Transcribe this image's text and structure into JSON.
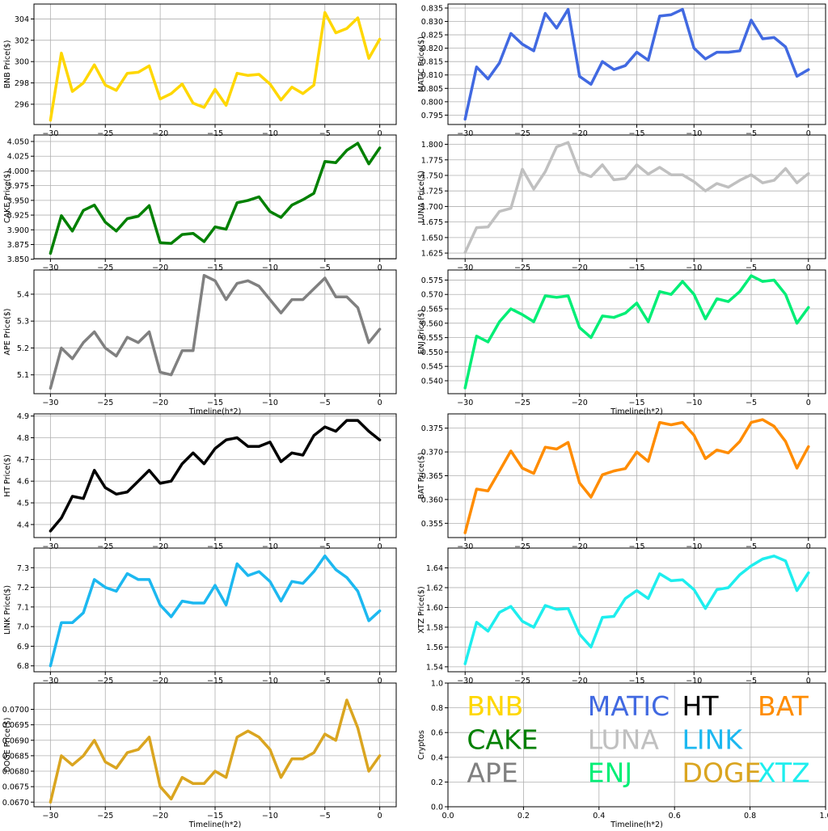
{
  "chart_data": [
    {
      "id": "bnb",
      "type": "line",
      "color": "#FFD700",
      "ylabel": "BNB Price($)",
      "xlabel": "",
      "xlim": [
        -31.5,
        1.5
      ],
      "ylim": [
        294.1,
        305.4
      ],
      "xticks": [
        -30,
        -25,
        -20,
        -15,
        -10,
        -5,
        0
      ],
      "yticks": [
        296,
        298,
        300,
        302,
        304
      ],
      "ytick_decimals": 0,
      "series": [
        {
          "values": [
            294.5,
            300.8,
            297.2,
            298.0,
            299.7,
            297.8,
            297.3,
            298.9,
            299.0,
            299.6,
            296.5,
            297.0,
            297.9,
            296.1,
            295.7,
            297.4,
            295.9,
            298.9,
            298.7,
            298.8,
            297.9,
            296.4,
            297.6,
            297.0,
            297.8,
            304.6,
            302.7,
            303.1,
            304.1,
            300.3,
            302.1
          ]
        }
      ]
    },
    {
      "id": "matic",
      "type": "line",
      "color": "#4169E1",
      "ylabel": "MATIC  Price($)",
      "xlabel": "",
      "xlim": [
        -31.5,
        1.5
      ],
      "ylim": [
        0.7915,
        0.8365
      ],
      "xticks": [
        -30,
        -25,
        -20,
        -15,
        -10,
        -5,
        0
      ],
      "yticks": [
        0.795,
        0.8,
        0.805,
        0.81,
        0.815,
        0.82,
        0.825,
        0.83,
        0.835
      ],
      "ytick_decimals": 3,
      "series": [
        {
          "values": [
            0.7935,
            0.813,
            0.8085,
            0.8145,
            0.8255,
            0.8215,
            0.819,
            0.833,
            0.8275,
            0.8345,
            0.8095,
            0.8065,
            0.815,
            0.812,
            0.8135,
            0.8185,
            0.8155,
            0.832,
            0.8325,
            0.8345,
            0.82,
            0.816,
            0.8185,
            0.8185,
            0.819,
            0.8305,
            0.8235,
            0.824,
            0.8205,
            0.8095,
            0.812
          ]
        }
      ]
    },
    {
      "id": "cake",
      "type": "line",
      "color": "#008000",
      "ylabel": "CAKE Price($)",
      "xlabel": "",
      "xlim": [
        -31.5,
        1.5
      ],
      "ylim": [
        3.851,
        4.061
      ],
      "xticks": [
        -30,
        -25,
        -20,
        -15,
        -10,
        -5,
        0
      ],
      "yticks": [
        3.85,
        3.875,
        3.9,
        3.925,
        3.95,
        3.975,
        4.0,
        4.025,
        4.05
      ],
      "ytick_decimals": 3,
      "series": [
        {
          "values": [
            3.86,
            3.924,
            3.898,
            3.933,
            3.942,
            3.913,
            3.898,
            3.919,
            3.923,
            3.941,
            3.878,
            3.877,
            3.892,
            3.894,
            3.88,
            3.905,
            3.901,
            3.946,
            3.95,
            3.956,
            3.931,
            3.921,
            3.942,
            3.951,
            3.962,
            4.016,
            4.014,
            4.035,
            4.047,
            4.012,
            4.039
          ]
        }
      ]
    },
    {
      "id": "luna",
      "type": "line",
      "color": "#C0C0C0",
      "ylabel": "LUNA  Price($)",
      "xlabel": "",
      "xlim": [
        -31.5,
        1.5
      ],
      "ylim": [
        1.616,
        1.815
      ],
      "xticks": [
        -30,
        -25,
        -20,
        -15,
        -10,
        -5,
        0
      ],
      "yticks": [
        1.625,
        1.65,
        1.675,
        1.7,
        1.725,
        1.75,
        1.775,
        1.8
      ],
      "ytick_decimals": 3,
      "series": [
        {
          "values": [
            1.626,
            1.666,
            1.667,
            1.692,
            1.697,
            1.76,
            1.728,
            1.756,
            1.796,
            1.803,
            1.755,
            1.748,
            1.767,
            1.743,
            1.745,
            1.767,
            1.752,
            1.763,
            1.751,
            1.751,
            1.74,
            1.725,
            1.737,
            1.731,
            1.742,
            1.751,
            1.738,
            1.742,
            1.761,
            1.738,
            1.753
          ]
        }
      ]
    },
    {
      "id": "ape",
      "type": "line",
      "color": "#808080",
      "ylabel": "APE Price($)",
      "xlabel": "Timeline(h*2)",
      "xlim": [
        -31.5,
        1.5
      ],
      "ylim": [
        5.03,
        5.49
      ],
      "xticks": [
        -30,
        -25,
        -20,
        -15,
        -10,
        -5,
        0
      ],
      "yticks": [
        5.1,
        5.2,
        5.3,
        5.4
      ],
      "ytick_decimals": 1,
      "series": [
        {
          "values": [
            5.05,
            5.2,
            5.16,
            5.22,
            5.26,
            5.2,
            5.17,
            5.24,
            5.22,
            5.26,
            5.11,
            5.1,
            5.19,
            5.19,
            5.47,
            5.45,
            5.38,
            5.44,
            5.45,
            5.43,
            5.38,
            5.33,
            5.38,
            5.38,
            5.42,
            5.46,
            5.39,
            5.39,
            5.35,
            5.22,
            5.27
          ]
        }
      ]
    },
    {
      "id": "enj",
      "type": "line",
      "color": "#00EE76",
      "ylabel": "ENJ  Price($)",
      "xlabel": "Timeline(h*2)",
      "xlim": [
        -31.5,
        1.5
      ],
      "ylim": [
        0.5355,
        0.5785
      ],
      "xticks": [
        -30,
        -25,
        -20,
        -15,
        -10,
        -5,
        0
      ],
      "yticks": [
        0.54,
        0.545,
        0.55,
        0.555,
        0.56,
        0.565,
        0.57,
        0.575
      ],
      "ytick_decimals": 3,
      "series": [
        {
          "values": [
            0.5375,
            0.5555,
            0.5535,
            0.5605,
            0.565,
            0.563,
            0.5605,
            0.5695,
            0.569,
            0.5695,
            0.5585,
            0.555,
            0.5625,
            0.562,
            0.5635,
            0.567,
            0.5605,
            0.571,
            0.57,
            0.5745,
            0.57,
            0.5615,
            0.5685,
            0.5675,
            0.571,
            0.5765,
            0.5745,
            0.575,
            0.57,
            0.56,
            0.5655
          ]
        }
      ]
    },
    {
      "id": "ht",
      "type": "line",
      "color": "#000000",
      "ylabel": "HT  Price($)",
      "xlabel": "",
      "xlim": [
        -31.5,
        1.5
      ],
      "ylim": [
        4.34,
        4.91
      ],
      "xticks": [
        -30,
        -25,
        -20,
        -15,
        -10,
        -5,
        0
      ],
      "yticks": [
        4.4,
        4.5,
        4.6,
        4.7,
        4.8,
        4.9
      ],
      "ytick_decimals": 1,
      "series": [
        {
          "values": [
            4.37,
            4.43,
            4.53,
            4.52,
            4.65,
            4.57,
            4.54,
            4.55,
            4.6,
            4.65,
            4.59,
            4.6,
            4.68,
            4.73,
            4.68,
            4.75,
            4.79,
            4.8,
            4.76,
            4.76,
            4.78,
            4.69,
            4.73,
            4.72,
            4.81,
            4.85,
            4.83,
            4.88,
            4.88,
            4.83,
            4.79
          ]
        }
      ]
    },
    {
      "id": "bat",
      "type": "line",
      "color": "#FF8C00",
      "ylabel": "BAT  Price($)",
      "xlabel": "",
      "xlim": [
        -31.5,
        1.5
      ],
      "ylim": [
        0.352,
        0.378
      ],
      "xticks": [
        -30,
        -25,
        -20,
        -15,
        -10,
        -5,
        0
      ],
      "yticks": [
        0.355,
        0.36,
        0.365,
        0.37,
        0.375
      ],
      "ytick_decimals": 3,
      "series": [
        {
          "values": [
            0.353,
            0.3622,
            0.3618,
            0.366,
            0.3702,
            0.3666,
            0.3655,
            0.371,
            0.3706,
            0.372,
            0.3635,
            0.3605,
            0.3652,
            0.366,
            0.3665,
            0.37,
            0.368,
            0.3762,
            0.3757,
            0.3762,
            0.3735,
            0.3686,
            0.3704,
            0.3698,
            0.3722,
            0.3762,
            0.3768,
            0.3754,
            0.3722,
            0.3666,
            0.3711
          ]
        }
      ]
    },
    {
      "id": "link",
      "type": "line",
      "color": "#1CB8F0",
      "ylabel": "LINK  Price($)",
      "xlabel": "",
      "xlim": [
        -31.5,
        1.5
      ],
      "ylim": [
        6.77,
        7.4
      ],
      "xticks": [
        -30,
        -25,
        -20,
        -15,
        -10,
        -5,
        0
      ],
      "yticks": [
        6.8,
        6.9,
        7.0,
        7.1,
        7.2,
        7.3
      ],
      "ytick_decimals": 1,
      "series": [
        {
          "values": [
            6.8,
            7.02,
            7.02,
            7.07,
            7.24,
            7.2,
            7.18,
            7.27,
            7.24,
            7.24,
            7.11,
            7.05,
            7.13,
            7.12,
            7.12,
            7.21,
            7.11,
            7.32,
            7.26,
            7.28,
            7.23,
            7.13,
            7.23,
            7.22,
            7.28,
            7.36,
            7.29,
            7.25,
            7.18,
            7.03,
            7.08
          ]
        }
      ]
    },
    {
      "id": "xtz",
      "type": "line",
      "color": "#1EEEEE",
      "ylabel": "XTZ Price($)",
      "xlabel": "",
      "xlim": [
        -31.5,
        1.5
      ],
      "ylim": [
        1.535,
        1.66
      ],
      "xticks": [
        -30,
        -25,
        -20,
        -15,
        -10,
        -5,
        0
      ],
      "yticks": [
        1.54,
        1.56,
        1.58,
        1.6,
        1.62,
        1.64
      ],
      "ytick_decimals": 2,
      "series": [
        {
          "values": [
            1.543,
            1.585,
            1.576,
            1.595,
            1.601,
            1.586,
            1.58,
            1.602,
            1.598,
            1.599,
            1.573,
            1.56,
            1.59,
            1.591,
            1.609,
            1.617,
            1.609,
            1.634,
            1.627,
            1.628,
            1.618,
            1.599,
            1.618,
            1.62,
            1.633,
            1.642,
            1.649,
            1.652,
            1.647,
            1.617,
            1.635
          ]
        }
      ]
    },
    {
      "id": "doge",
      "type": "line",
      "color": "#DAA520",
      "ylabel": "DOGE Price($)",
      "xlabel": "Timeline(h*2)",
      "xlim": [
        -31.5,
        1.5
      ],
      "ylim": [
        0.06685,
        0.07085
      ],
      "xticks": [
        -30,
        -25,
        -20,
        -15,
        -10,
        -5,
        0
      ],
      "yticks": [
        0.067,
        0.0675,
        0.068,
        0.0685,
        0.069,
        0.0695,
        0.07
      ],
      "ytick_decimals": 4,
      "series": [
        {
          "values": [
            0.067,
            0.0685,
            0.0682,
            0.0685,
            0.069,
            0.0683,
            0.0681,
            0.0686,
            0.0687,
            0.0691,
            0.0675,
            0.0671,
            0.0678,
            0.0676,
            0.0676,
            0.068,
            0.0678,
            0.0691,
            0.0693,
            0.0691,
            0.0687,
            0.0678,
            0.0684,
            0.0684,
            0.0686,
            0.0692,
            0.069,
            0.0703,
            0.0694,
            0.068,
            0.0685
          ]
        }
      ]
    },
    {
      "id": "legend",
      "type": "table",
      "ylabel": "Cryptos",
      "xlabel": "Timeline(h*2)",
      "xlim": [
        0,
        1
      ],
      "ylim": [
        0,
        1
      ],
      "xticks": [
        0.0,
        0.2,
        0.4,
        0.6,
        0.8,
        1.0
      ],
      "yticks": [
        0.0,
        0.2,
        0.4,
        0.6,
        0.8,
        1.0
      ],
      "ytick_decimals": 1,
      "entries": [
        {
          "label": "BNB",
          "color": "#FFD700"
        },
        {
          "label": "MATIC",
          "color": "#4169E1"
        },
        {
          "label": "HT",
          "color": "#000000"
        },
        {
          "label": "BAT",
          "color": "#FF8C00"
        },
        {
          "label": "CAKE",
          "color": "#008000"
        },
        {
          "label": "LUNA",
          "color": "#C0C0C0"
        },
        {
          "label": "LINK",
          "color": "#1CB8F0"
        },
        {
          "label": "APE",
          "color": "#808080"
        },
        {
          "label": "ENJ",
          "color": "#00EE76"
        },
        {
          "label": "DOGE",
          "color": "#DAA520"
        },
        {
          "label": "XTZ",
          "color": "#1EEEEE"
        }
      ]
    }
  ]
}
